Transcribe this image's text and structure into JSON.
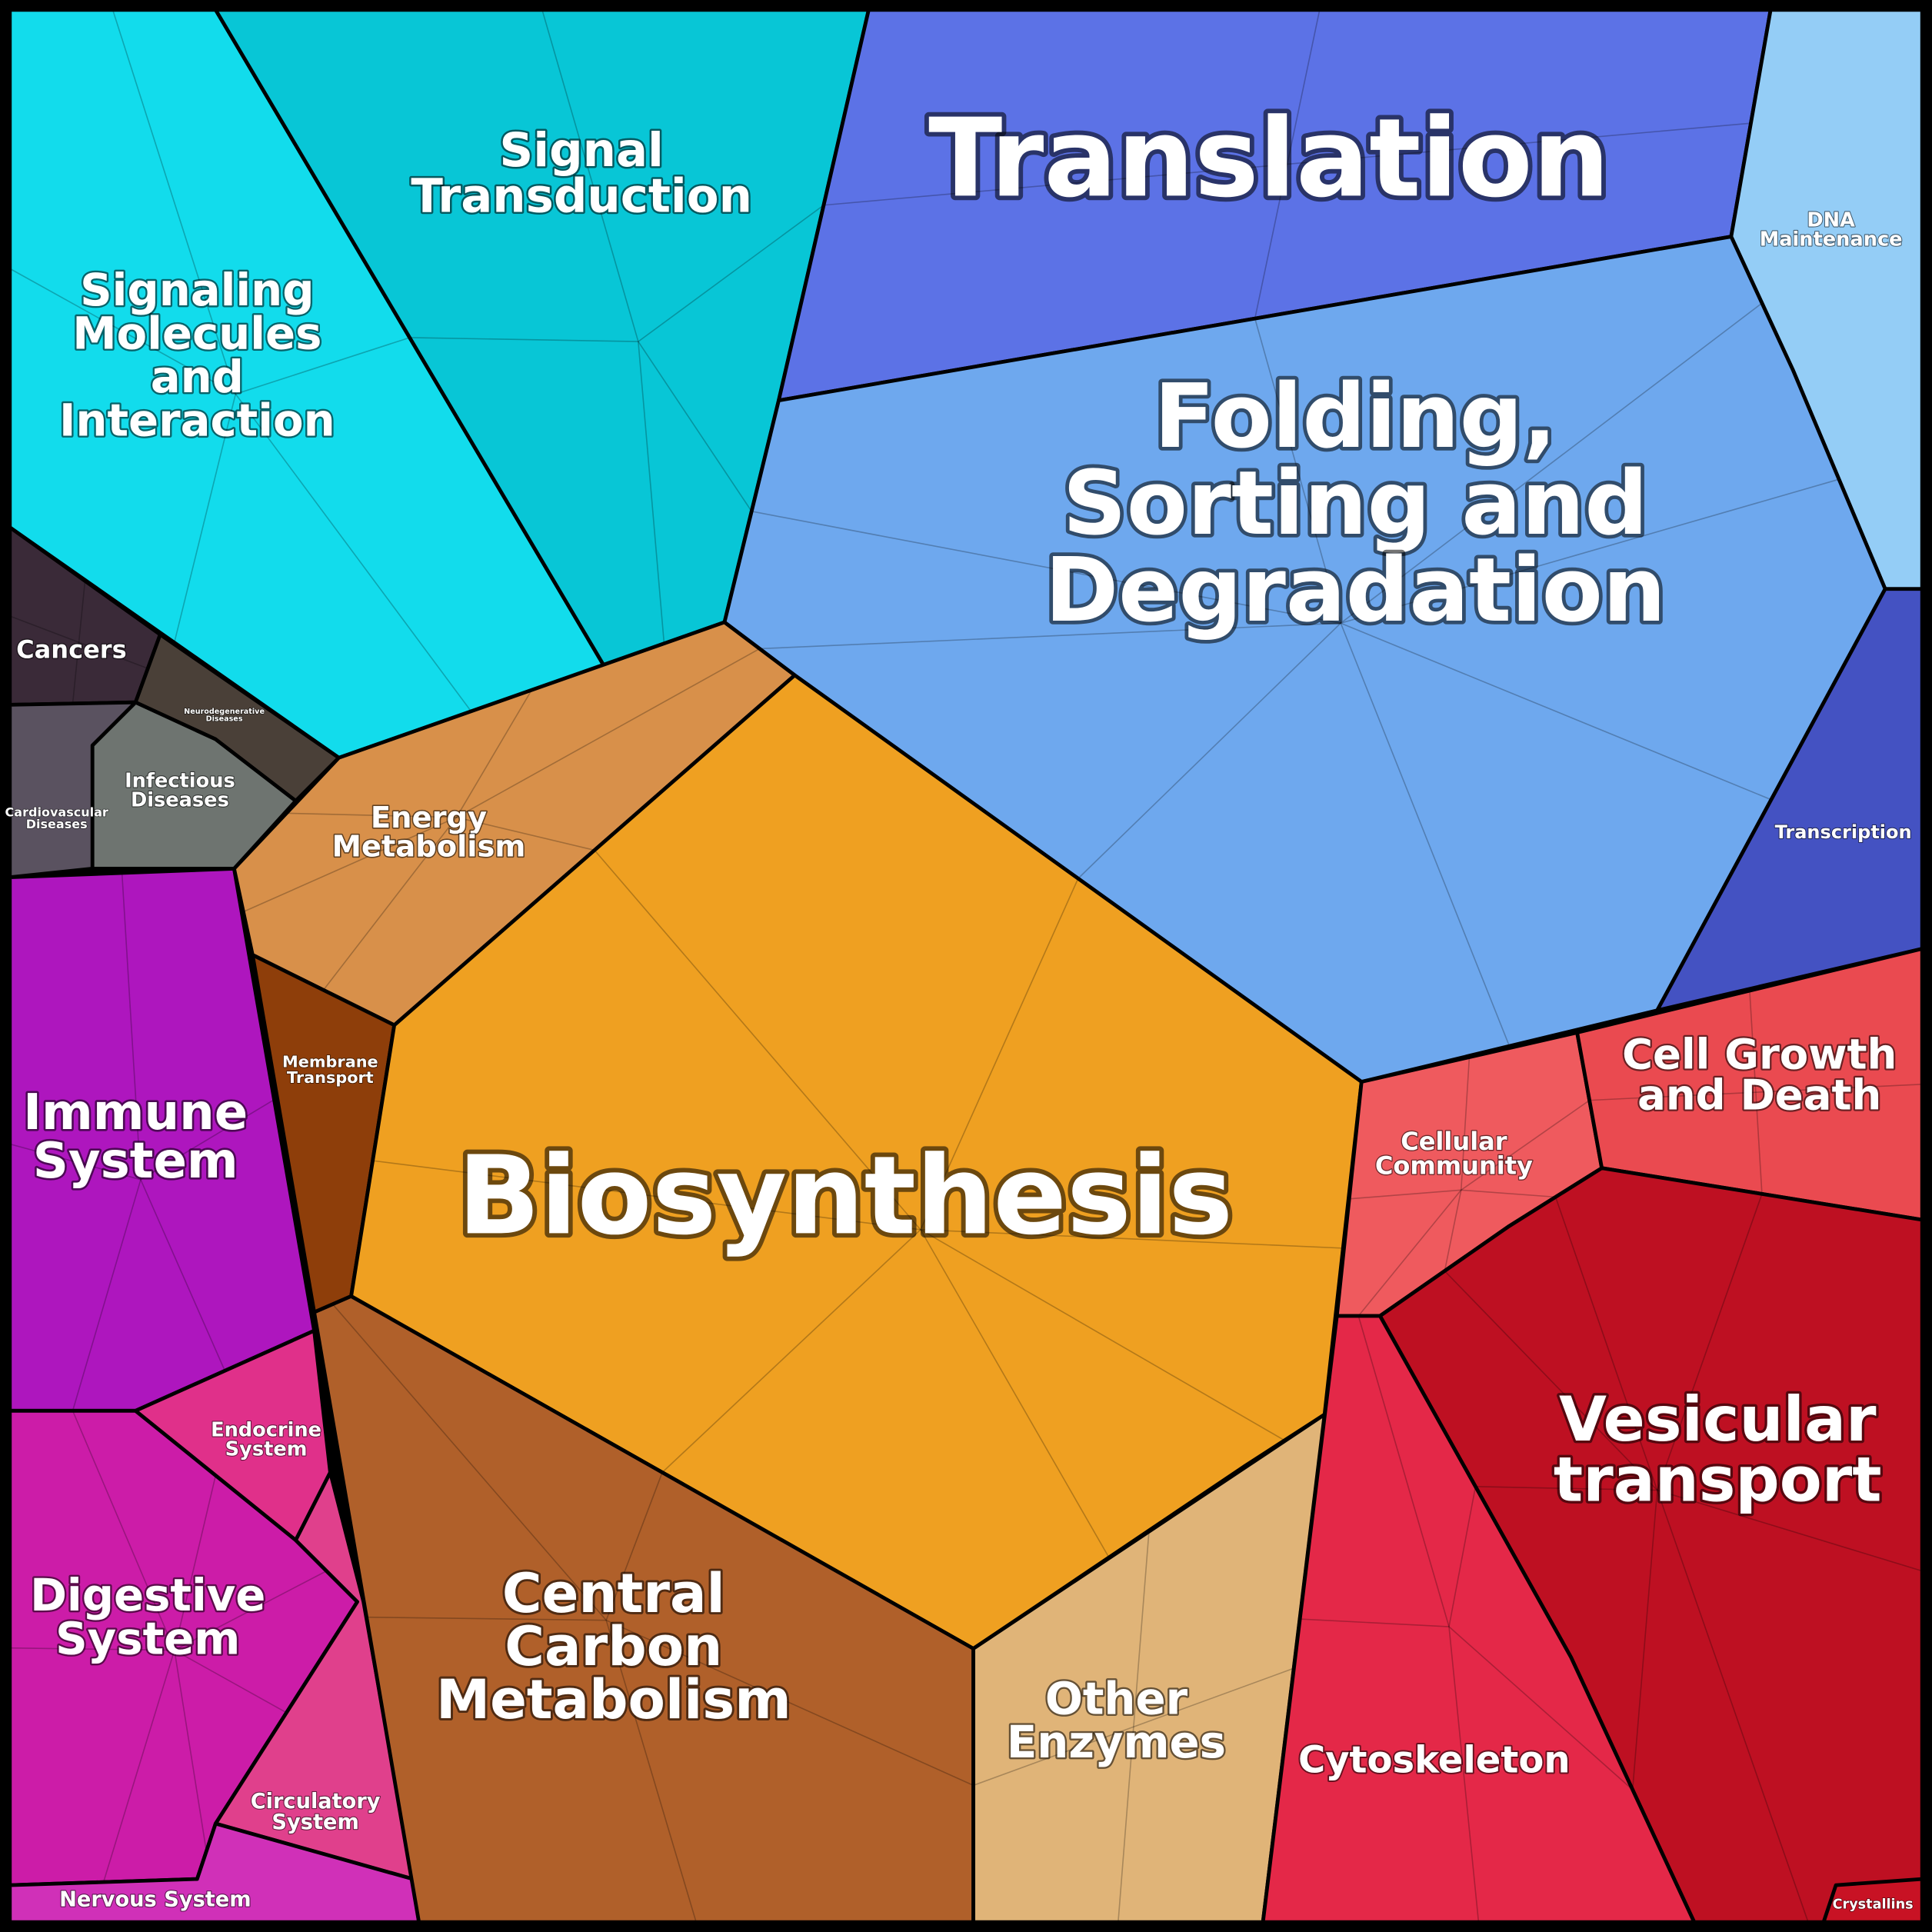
{
  "regions": [
    {
      "lines": [
        "Signaling",
        "Molecules",
        "and",
        "Interaction"
      ]
    },
    {
      "lines": [
        "Signal",
        "Transduction"
      ]
    },
    {
      "lines": [
        "Translation"
      ]
    },
    {
      "lines": [
        "DNA",
        "Maintenance"
      ]
    },
    {
      "lines": [
        "Folding,",
        "Sorting and",
        "Degradation"
      ]
    },
    {
      "lines": [
        "Transcription"
      ]
    },
    {
      "lines": [
        "Cancers"
      ]
    },
    {
      "lines": [
        "Neurodegenerative",
        "Diseases"
      ]
    },
    {
      "lines": [
        "Infectious",
        "Diseases"
      ]
    },
    {
      "lines": [
        "Cardiovascular",
        "Diseases"
      ]
    },
    {
      "lines": [
        "Immune",
        "System"
      ]
    },
    {
      "lines": [
        "Endocrine",
        "System"
      ]
    },
    {
      "lines": [
        "Digestive",
        "System"
      ]
    },
    {
      "lines": [
        "Circulatory",
        "System"
      ]
    },
    {
      "lines": [
        "Nervous System"
      ]
    },
    {
      "lines": [
        "Energy",
        "Metabolism"
      ]
    },
    {
      "lines": [
        "Membrane",
        "Transport"
      ]
    },
    {
      "lines": [
        "Biosynthesis"
      ]
    },
    {
      "lines": [
        "Central",
        "Carbon",
        "Metabolism"
      ]
    },
    {
      "lines": [
        "Other",
        "Enzymes"
      ]
    },
    {
      "lines": [
        "Cellular",
        "Community"
      ]
    },
    {
      "lines": [
        "Cell Growth",
        "and Death"
      ]
    },
    {
      "lines": [
        "Vesicular",
        "transport"
      ]
    },
    {
      "lines": [
        "Cytoskeleton"
      ]
    },
    {
      "lines": [
        "Crystallins"
      ]
    }
  ]
}
